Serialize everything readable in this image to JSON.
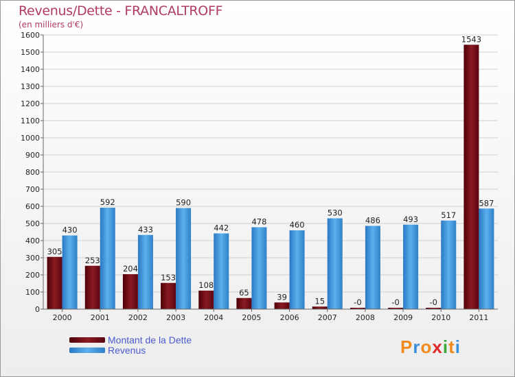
{
  "chart_data": {
    "type": "bar",
    "title": "Revenus/Dette - FRANCALTROFF",
    "subtitle": "(en milliers d'€)",
    "categories": [
      "2000",
      "2001",
      "2002",
      "2003",
      "2004",
      "2005",
      "2006",
      "2007",
      "2008",
      "2009",
      "2010",
      "2011"
    ],
    "series": [
      {
        "name": "Montant de la Dette",
        "color": "#7a0a14",
        "values": [
          305,
          253,
          204,
          153,
          108,
          65,
          39,
          15,
          0,
          0,
          0,
          1543
        ],
        "labels": [
          "305",
          "253",
          "204",
          "153",
          "108",
          "65",
          "39",
          "15",
          "-0",
          "-0",
          "-0",
          "1543"
        ]
      },
      {
        "name": "Revenus",
        "color": "#3d98dc",
        "values": [
          430,
          592,
          433,
          590,
          442,
          478,
          460,
          530,
          486,
          493,
          517,
          587
        ],
        "labels": [
          "430",
          "592",
          "433",
          "590",
          "442",
          "478",
          "460",
          "530",
          "486",
          "493",
          "517",
          "587"
        ]
      }
    ],
    "ylim": [
      0,
      1600
    ],
    "yticks": [
      0,
      100,
      200,
      300,
      400,
      500,
      600,
      700,
      800,
      900,
      1000,
      1100,
      1200,
      1300,
      1400,
      1500,
      1600
    ],
    "grid": true,
    "legend": "bottom-left"
  },
  "logo": {
    "letters": [
      "P",
      "r",
      "o",
      "x",
      "i",
      "t",
      "i"
    ],
    "colors": [
      "#f08a1c",
      "#3a8fd8",
      "#f08a1c",
      "#e02828",
      "#3aa83a",
      "#f08a1c",
      "#3a8fd8"
    ]
  }
}
